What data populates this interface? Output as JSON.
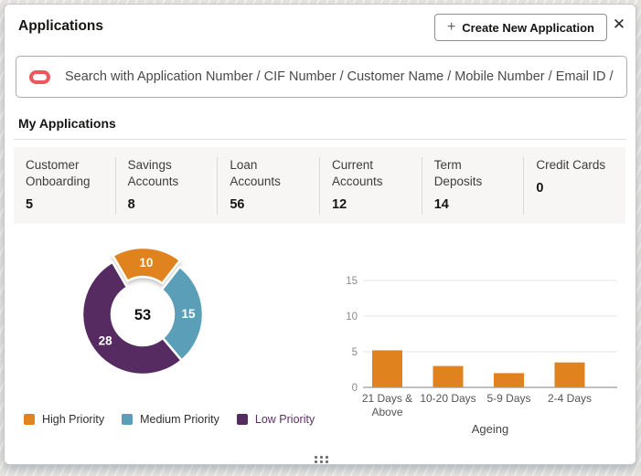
{
  "header": {
    "title": "Applications",
    "plus_icon": "+",
    "create_button_label": "Create New Application",
    "close_icon": "✕"
  },
  "search": {
    "placeholder": "Search with Application Number / CIF Number / Customer Name / Mobile Number / Email ID /"
  },
  "section_title": "My Applications",
  "tiles": [
    {
      "label": "Customer Onboarding",
      "value": "5"
    },
    {
      "label": "Savings Accounts",
      "value": "8"
    },
    {
      "label": "Loan Accounts",
      "value": "56"
    },
    {
      "label": "Current Accounts",
      "value": "12"
    },
    {
      "label": "Term Deposits",
      "value": "14"
    },
    {
      "label": "Credit Cards",
      "value": "0"
    }
  ],
  "chart_data": [
    {
      "type": "pie",
      "subtype": "donut",
      "labels": [
        "High Priority",
        "Medium Priority",
        "Low Priority"
      ],
      "values": [
        10,
        15,
        28
      ],
      "colors": [
        "#E0821E",
        "#5B9EB8",
        "#552B62"
      ],
      "slice_label_color": "#FFFFFF",
      "center_total": "53",
      "exploded_index": 0,
      "start_angle_deg": -30,
      "legend_position": "bottom",
      "legend_text_colors": [
        "#2e2e2e",
        "#2e2e2e",
        "#5C2E62"
      ]
    },
    {
      "type": "bar",
      "categories": [
        "21 Days & Above",
        "10-20 Days",
        "5-9 Days",
        "2-4 Days"
      ],
      "category_tick_lines": [
        [
          "21 Days &",
          "Above"
        ],
        [
          "10-20 Days"
        ],
        [
          "5-9 Days"
        ],
        [
          "2-4 Days"
        ]
      ],
      "values": [
        5.2,
        3,
        2,
        3.5
      ],
      "title": "",
      "xlabel": "Ageing",
      "ylabel": "",
      "ylim": [
        0,
        15
      ],
      "yticks": [
        0,
        5,
        10,
        15
      ],
      "bar_color": "#E0821E",
      "grid": true,
      "gridline_color": "#E6E6E6",
      "axis_color": "#9a9a9a",
      "tick_label_color": "#8a8a8a",
      "category_label_color": "#555555",
      "xlabel_color": "#444444"
    }
  ]
}
